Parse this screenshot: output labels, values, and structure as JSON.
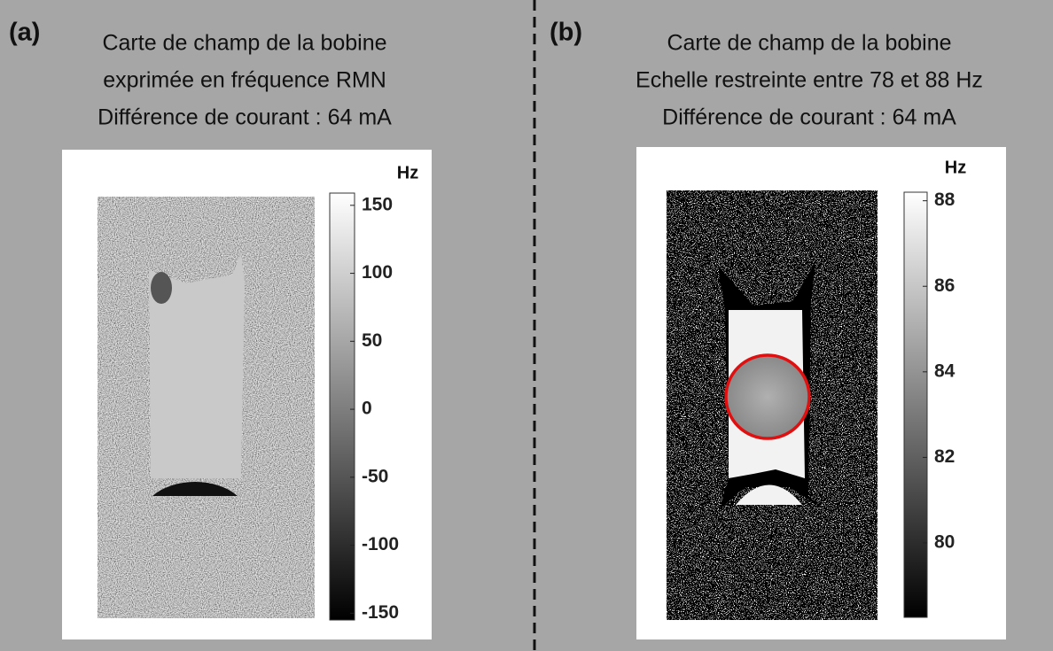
{
  "panels": [
    {
      "label": "(a)",
      "title": [
        "Carte de champ de la bobine",
        "exprimée en fréquence RMN",
        "Différence de courant : 64 mA"
      ],
      "colorbar": {
        "unit": "Hz",
        "lim": [
          -155,
          159
        ],
        "ticks": [
          150,
          100,
          50,
          0,
          -50,
          -100,
          -150
        ]
      }
    },
    {
      "label": "(b)",
      "title": [
        "Carte de champ de la bobine",
        "Echelle restreinte entre 78 et 88 Hz",
        "Différence de courant : 64 mA"
      ],
      "colorbar": {
        "unit": "Hz",
        "lim": [
          78.26,
          88.2
        ],
        "ticks": [
          88,
          86,
          84,
          82,
          80
        ]
      }
    }
  ]
}
